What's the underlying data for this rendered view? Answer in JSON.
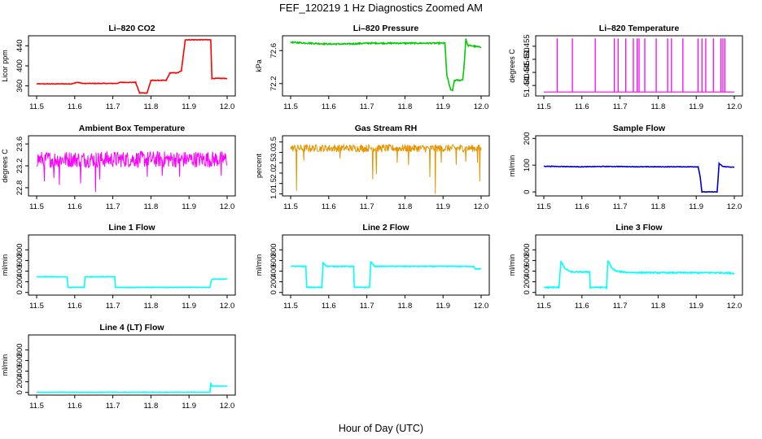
{
  "figure": {
    "title": "FEF_120219  1 Hz Diagnostics Zoomed AM",
    "xlabel": "Hour of Day (UTC)"
  },
  "chart_data": [
    {
      "type": "line",
      "title": "Li–820 CO2",
      "ylabel": "Licor ppm",
      "color": "#ff0000",
      "xlim": [
        11.5,
        12.0
      ],
      "ylim": [
        340,
        460
      ],
      "xticks": [
        "11.5",
        "11.6",
        "11.7",
        "11.8",
        "11.9",
        "12.0"
      ],
      "yticks": [
        360,
        400,
        440
      ],
      "noise": 0.6,
      "x": [
        11.5,
        11.59,
        11.6,
        11.61,
        11.62,
        11.71,
        11.72,
        11.76,
        11.77,
        11.78,
        11.79,
        11.8,
        11.84,
        11.85,
        11.87,
        11.88,
        11.89,
        11.957,
        11.96,
        11.97,
        12.0
      ],
      "y": [
        364,
        364,
        366,
        367,
        365,
        365,
        367,
        367,
        346,
        346,
        346,
        371,
        371,
        386,
        386,
        390,
        452,
        452,
        375,
        375,
        375
      ]
    },
    {
      "type": "line",
      "title": "Li–820 Pressure",
      "ylabel": "kPa",
      "color": "#00cc00",
      "xlim": [
        11.5,
        12.0
      ],
      "ylim": [
        72.05,
        72.78
      ],
      "xticks": [
        "11.5",
        "11.6",
        "11.7",
        "11.8",
        "11.9",
        "12.0"
      ],
      "yticks": [
        72.2,
        72.6
      ],
      "yfmt": 1,
      "noise": 0.008,
      "x": [
        11.5,
        11.55,
        11.6,
        11.65,
        11.7,
        11.75,
        11.8,
        11.85,
        11.905,
        11.91,
        11.92,
        11.925,
        11.93,
        11.945,
        11.952,
        11.955,
        11.96,
        11.965,
        11.975,
        11.985,
        12.0
      ],
      "y": [
        72.7,
        72.69,
        72.68,
        72.68,
        72.69,
        72.69,
        72.69,
        72.69,
        72.69,
        72.3,
        72.12,
        72.12,
        72.24,
        72.24,
        72.25,
        72.4,
        72.74,
        72.66,
        72.66,
        72.65,
        72.64
      ]
    },
    {
      "type": "spikes",
      "title": "Li–820 Temperature",
      "ylabel": "degrees C",
      "color": "#ff00ff",
      "xlim": [
        11.5,
        12.0
      ],
      "ylim": [
        51.436,
        51.459
      ],
      "xticks": [
        "11.5",
        "11.6",
        "11.7",
        "11.8",
        "11.9",
        "12.0"
      ],
      "yticks": [
        51.44,
        51.445,
        51.45,
        51.455
      ],
      "yfmt": 3,
      "baseline": 51.4375,
      "peak": 51.458,
      "spikes": [
        11.535,
        11.575,
        11.635,
        11.685,
        11.695,
        11.715,
        11.735,
        11.745,
        11.75,
        11.765,
        11.795,
        11.825,
        11.835,
        11.865,
        11.905,
        11.915,
        11.925,
        11.945,
        11.965,
        11.97,
        11.975
      ]
    },
    {
      "type": "noise",
      "title": "Ambient Box Temperature",
      "ylabel": "degrees C",
      "color": "#ff00ff",
      "xlim": [
        11.5,
        12.0
      ],
      "ylim": [
        22.65,
        23.75
      ],
      "xticks": [
        "11.5",
        "11.6",
        "11.7",
        "11.8",
        "11.9",
        "12.0"
      ],
      "yticks": [
        22.8,
        23.2,
        23.6
      ],
      "yfmt": 1,
      "center": 23.32,
      "spread": 0.15,
      "dips": [
        [
          11.52,
          22.92
        ],
        [
          11.545,
          22.98
        ],
        [
          11.56,
          22.85
        ],
        [
          11.615,
          22.88
        ],
        [
          11.655,
          22.72
        ],
        [
          11.665,
          22.95
        ],
        [
          11.79,
          23.0
        ],
        [
          11.83,
          23.02
        ],
        [
          11.875,
          23.0
        ],
        [
          11.985,
          23.02
        ]
      ]
    },
    {
      "type": "noise",
      "title": "Gas Stream RH",
      "ylabel": "percent",
      "color": "#e69500",
      "xlim": [
        11.5,
        12.0
      ],
      "ylim": [
        0.9,
        3.8
      ],
      "xticks": [
        "11.5",
        "11.6",
        "11.7",
        "11.8",
        "11.9",
        "12.0"
      ],
      "yticks": [
        1.0,
        1.5,
        2.0,
        2.5,
        3.0,
        3.5
      ],
      "yfmt": 1,
      "center": 3.2,
      "spread": 0.18,
      "dips": [
        [
          11.515,
          1.15
        ],
        [
          11.535,
          2.6
        ],
        [
          11.63,
          2.7
        ],
        [
          11.715,
          1.7
        ],
        [
          11.725,
          1.95
        ],
        [
          11.78,
          2.5
        ],
        [
          11.81,
          2.4
        ],
        [
          11.865,
          1.8
        ],
        [
          11.88,
          1.0
        ],
        [
          11.895,
          2.5
        ],
        [
          11.935,
          2.4
        ],
        [
          11.96,
          2.55
        ],
        [
          11.99,
          2.5
        ],
        [
          11.997,
          1.6
        ]
      ]
    },
    {
      "type": "line",
      "title": "Sample Flow",
      "ylabel": "ml/min",
      "color": "#0000cc",
      "xlim": [
        11.5,
        12.0
      ],
      "ylim": [
        -15,
        210
      ],
      "xticks": [
        "11.5",
        "11.6",
        "11.7",
        "11.8",
        "11.9",
        "12.0"
      ],
      "yticks": [
        0,
        100,
        200
      ],
      "noise": 1.0,
      "x": [
        11.5,
        11.55,
        11.6,
        11.65,
        11.7,
        11.75,
        11.8,
        11.85,
        11.905,
        11.91,
        11.915,
        11.95,
        11.955,
        11.958,
        11.96,
        11.97,
        12.0
      ],
      "y": [
        96,
        95,
        94,
        95,
        95,
        94,
        94,
        94,
        94,
        60,
        0,
        0,
        0,
        60,
        106,
        95,
        92
      ]
    },
    {
      "type": "line",
      "title": "Line 1 Flow",
      "ylabel": "ml/min",
      "color": "#00ffff",
      "xlim": [
        11.5,
        12.0
      ],
      "ylim": [
        -50,
        1080
      ],
      "xticks": [
        "11.5",
        "11.6",
        "11.7",
        "11.8",
        "11.9",
        "12.0"
      ],
      "yticks": [
        0,
        200,
        400,
        600,
        800
      ],
      "noise": 5,
      "x": [
        11.5,
        11.58,
        11.582,
        11.625,
        11.627,
        11.705,
        11.707,
        11.955,
        11.957,
        11.96,
        12.0
      ],
      "y": [
        295,
        295,
        95,
        95,
        295,
        295,
        95,
        95,
        180,
        250,
        250
      ]
    },
    {
      "type": "line",
      "title": "Line 2 Flow",
      "ylabel": "ml/min",
      "color": "#00ffff",
      "xlim": [
        11.5,
        12.0
      ],
      "ylim": [
        -50,
        1080
      ],
      "xticks": [
        "11.5",
        "11.6",
        "11.7",
        "11.8",
        "11.9",
        "12.0"
      ],
      "yticks": [
        0,
        200,
        400,
        600,
        800
      ],
      "noise": 7,
      "x": [
        11.5,
        11.54,
        11.542,
        11.582,
        11.585,
        11.595,
        11.665,
        11.667,
        11.707,
        11.71,
        11.72,
        11.8,
        11.9,
        11.98,
        11.985,
        12.0
      ],
      "y": [
        490,
        490,
        95,
        95,
        560,
        490,
        490,
        95,
        95,
        580,
        490,
        490,
        490,
        490,
        440,
        440
      ]
    },
    {
      "type": "line",
      "title": "Line 3 Flow",
      "ylabel": "ml/min",
      "color": "#00ffff",
      "xlim": [
        11.5,
        12.0
      ],
      "ylim": [
        -50,
        1080
      ],
      "xticks": [
        "11.5",
        "11.6",
        "11.7",
        "11.8",
        "11.9",
        "12.0"
      ],
      "yticks": [
        0,
        200,
        400,
        600,
        800
      ],
      "noise": 12,
      "x": [
        11.5,
        11.54,
        11.542,
        11.545,
        11.555,
        11.57,
        11.62,
        11.622,
        11.665,
        11.668,
        11.678,
        11.69,
        11.72,
        11.8,
        11.9,
        11.97,
        12.0
      ],
      "y": [
        95,
        95,
        330,
        590,
        450,
        385,
        385,
        95,
        95,
        600,
        460,
        400,
        375,
        370,
        370,
        370,
        360
      ]
    },
    {
      "type": "line",
      "title": "Line 4 (LT) Flow",
      "ylabel": "ml/min",
      "color": "#00ffff",
      "xlim": [
        11.5,
        12.0
      ],
      "ylim": [
        -50,
        1080
      ],
      "xticks": [
        "11.5",
        "11.6",
        "11.7",
        "11.8",
        "11.9",
        "12.0"
      ],
      "yticks": [
        0,
        200,
        400,
        600,
        800
      ],
      "noise": 3,
      "x": [
        11.5,
        11.955,
        11.957,
        11.96,
        12.0
      ],
      "y": [
        5,
        5,
        180,
        120,
        120
      ]
    }
  ]
}
